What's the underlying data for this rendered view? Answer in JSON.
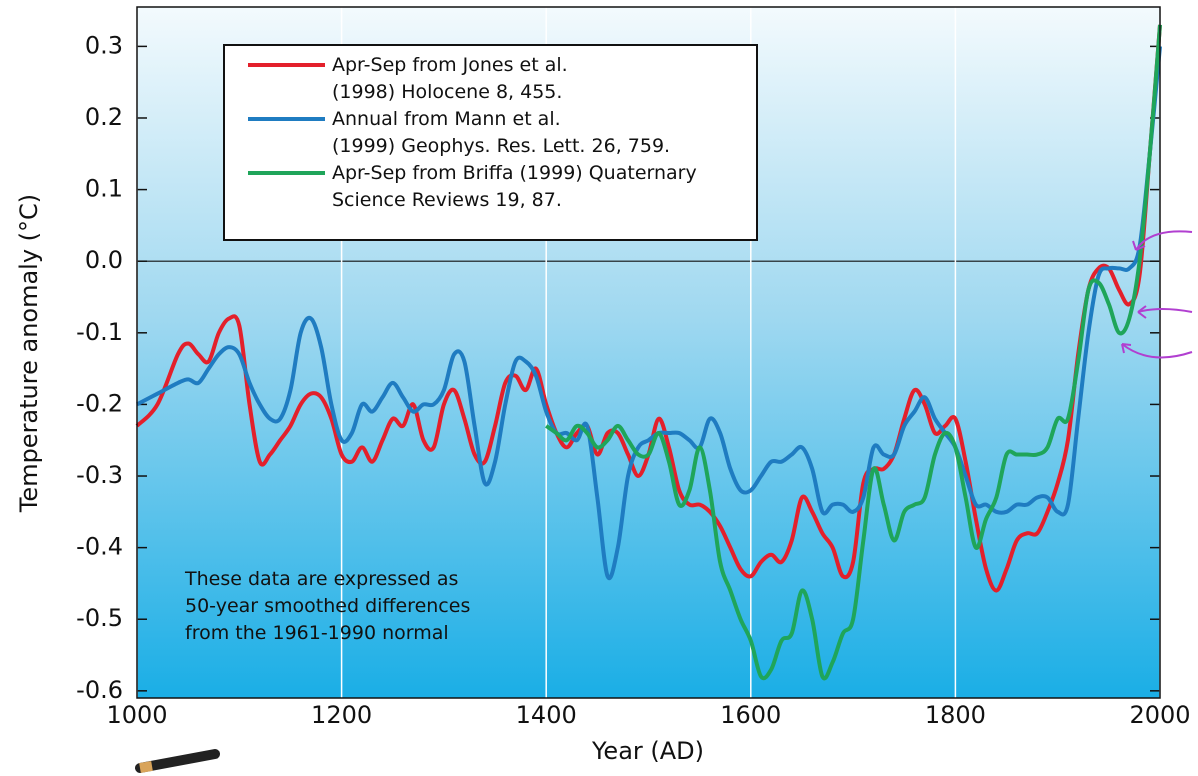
{
  "chart_data": {
    "type": "line",
    "y_label": "Temperature anomaly (°C)",
    "x_label": "Year (AD)",
    "annotation": "These data are expressed as\n50-year smoothed differences\nfrom the 1961-1990 normal",
    "xlim": [
      1000,
      2000
    ],
    "xticks": [
      1000,
      1200,
      1400,
      1600,
      1800,
      2000
    ],
    "ylim": [
      -0.61,
      0.355
    ],
    "yticks": [
      -0.6,
      -0.5,
      -0.4,
      -0.3,
      -0.2,
      -0.1,
      {
        "value": 0,
        "label": "0.0"
      },
      0.1,
      0.2,
      0.3
    ],
    "grid": true,
    "x": [
      1000,
      1020,
      1040,
      1050,
      1060,
      1070,
      1080,
      1090,
      1100,
      1110,
      1120,
      1130,
      1140,
      1150,
      1160,
      1170,
      1180,
      1190,
      1200,
      1210,
      1220,
      1230,
      1240,
      1250,
      1260,
      1270,
      1280,
      1290,
      1300,
      1310,
      1320,
      1330,
      1340,
      1350,
      1360,
      1370,
      1380,
      1390,
      1400,
      1410,
      1420,
      1430,
      1440,
      1450,
      1460,
      1470,
      1480,
      1490,
      1500,
      1510,
      1520,
      1530,
      1540,
      1550,
      1560,
      1570,
      1580,
      1590,
      1600,
      1610,
      1620,
      1630,
      1640,
      1650,
      1660,
      1670,
      1680,
      1690,
      1700,
      1710,
      1720,
      1730,
      1740,
      1750,
      1760,
      1770,
      1780,
      1790,
      1800,
      1810,
      1820,
      1830,
      1840,
      1850,
      1860,
      1870,
      1880,
      1890,
      1900,
      1910,
      1920,
      1930,
      1940,
      1950,
      1960,
      1970,
      1980,
      1990,
      2000
    ],
    "series": [
      {
        "name": "Apr-Sep from Jones et al.\n(1998) Holocene 8, 455.",
        "color": "#e3202b",
        "values": [
          -0.23,
          -0.2,
          -0.13,
          -0.115,
          -0.13,
          -0.14,
          -0.1,
          -0.08,
          -0.09,
          -0.2,
          -0.28,
          -0.27,
          -0.25,
          -0.23,
          -0.2,
          -0.185,
          -0.19,
          -0.22,
          -0.27,
          -0.28,
          -0.26,
          -0.28,
          -0.25,
          -0.22,
          -0.23,
          -0.2,
          -0.25,
          -0.26,
          -0.2,
          -0.18,
          -0.22,
          -0.27,
          -0.28,
          -0.23,
          -0.17,
          -0.16,
          -0.18,
          -0.15,
          -0.2,
          -0.24,
          -0.26,
          -0.24,
          -0.23,
          -0.27,
          -0.24,
          -0.24,
          -0.27,
          -0.3,
          -0.27,
          -0.22,
          -0.26,
          -0.32,
          -0.34,
          -0.34,
          -0.35,
          -0.37,
          -0.4,
          -0.43,
          -0.44,
          -0.42,
          -0.41,
          -0.42,
          -0.39,
          -0.33,
          -0.35,
          -0.38,
          -0.4,
          -0.44,
          -0.42,
          -0.31,
          -0.29,
          -0.29,
          -0.27,
          -0.22,
          -0.18,
          -0.2,
          -0.24,
          -0.23,
          -0.22,
          -0.28,
          -0.36,
          -0.43,
          -0.46,
          -0.43,
          -0.39,
          -0.38,
          -0.38,
          -0.35,
          -0.31,
          -0.25,
          -0.13,
          -0.04,
          -0.01,
          -0.01,
          -0.04,
          -0.06,
          -0.02,
          0.15,
          0.33
        ]
      },
      {
        "name": "Annual from Mann et al.\n(1999) Geophys. Res. Lett. 26, 759.",
        "color": "#1f7cc1",
        "values": [
          -0.2,
          -0.185,
          -0.17,
          -0.165,
          -0.17,
          -0.15,
          -0.13,
          -0.12,
          -0.13,
          -0.17,
          -0.2,
          -0.22,
          -0.22,
          -0.18,
          -0.1,
          -0.08,
          -0.12,
          -0.2,
          -0.25,
          -0.24,
          -0.2,
          -0.21,
          -0.19,
          -0.17,
          -0.19,
          -0.21,
          -0.2,
          -0.2,
          -0.18,
          -0.13,
          -0.14,
          -0.23,
          -0.31,
          -0.28,
          -0.2,
          -0.14,
          -0.14,
          -0.16,
          -0.21,
          -0.24,
          -0.24,
          -0.25,
          -0.23,
          -0.33,
          -0.44,
          -0.4,
          -0.3,
          -0.26,
          -0.25,
          -0.24,
          -0.24,
          -0.24,
          -0.25,
          -0.26,
          -0.22,
          -0.24,
          -0.29,
          -0.32,
          -0.32,
          -0.3,
          -0.28,
          -0.28,
          -0.27,
          -0.26,
          -0.29,
          -0.35,
          -0.34,
          -0.34,
          -0.35,
          -0.33,
          -0.26,
          -0.27,
          -0.27,
          -0.23,
          -0.21,
          -0.19,
          -0.22,
          -0.24,
          -0.26,
          -0.3,
          -0.34,
          -0.34,
          -0.35,
          -0.35,
          -0.34,
          -0.34,
          -0.33,
          -0.33,
          -0.35,
          -0.34,
          -0.22,
          -0.1,
          -0.02,
          -0.01,
          -0.01,
          -0.01,
          0.02,
          0.15,
          0.3
        ]
      },
      {
        "name": "Apr-Sep from Briffa (1999) Quaternary\nScience Reviews 19, 87.",
        "color": "#1fa55a",
        "values": [
          null,
          null,
          null,
          null,
          null,
          null,
          null,
          null,
          null,
          null,
          null,
          null,
          null,
          null,
          null,
          null,
          null,
          null,
          null,
          null,
          null,
          null,
          null,
          null,
          null,
          null,
          null,
          null,
          null,
          null,
          null,
          null,
          null,
          null,
          null,
          null,
          null,
          null,
          -0.23,
          -0.24,
          -0.25,
          -0.23,
          -0.24,
          -0.26,
          -0.25,
          -0.23,
          -0.25,
          -0.27,
          -0.27,
          -0.24,
          -0.28,
          -0.34,
          -0.32,
          -0.26,
          -0.32,
          -0.42,
          -0.46,
          -0.5,
          -0.53,
          -0.58,
          -0.57,
          -0.53,
          -0.52,
          -0.46,
          -0.5,
          -0.58,
          -0.56,
          -0.52,
          -0.5,
          -0.39,
          -0.29,
          -0.34,
          -0.39,
          -0.35,
          -0.34,
          -0.33,
          -0.27,
          -0.24,
          -0.26,
          -0.33,
          -0.4,
          -0.36,
          -0.33,
          -0.27,
          -0.27,
          -0.27,
          -0.27,
          -0.26,
          -0.22,
          -0.22,
          -0.14,
          -0.04,
          -0.03,
          -0.06,
          -0.1,
          -0.08,
          0.0,
          0.15,
          0.33
        ]
      }
    ]
  }
}
